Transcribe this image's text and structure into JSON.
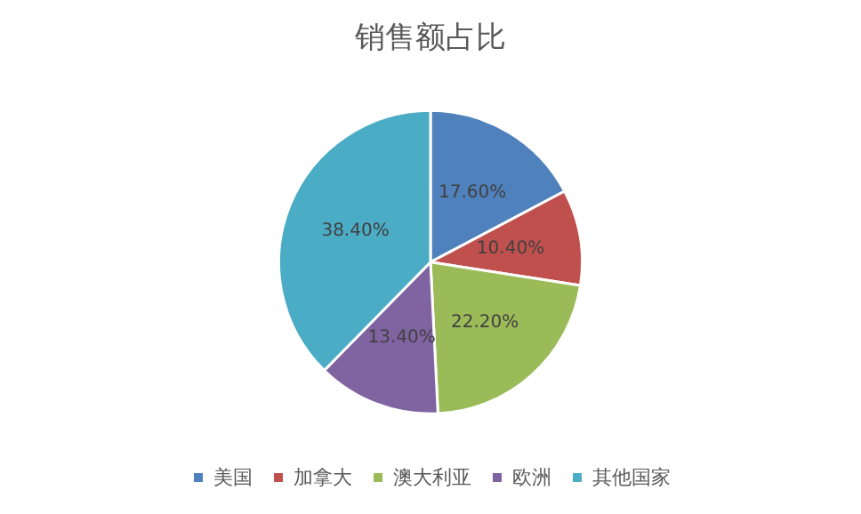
{
  "chart_data": {
    "type": "pie",
    "title": "销售额占比",
    "categories": [
      "美国",
      "加拿大",
      "澳大利亚",
      "欧洲",
      "其他国家"
    ],
    "values": [
      17.6,
      10.4,
      22.2,
      13.4,
      38.4
    ],
    "value_labels": [
      "17.60%",
      "10.40%",
      "22.20%",
      "13.40%",
      "38.40%"
    ],
    "colors": [
      "#4f81bd",
      "#c0504d",
      "#9bbb59",
      "#8064a2",
      "#4bacc6"
    ],
    "legend": "bottom"
  }
}
